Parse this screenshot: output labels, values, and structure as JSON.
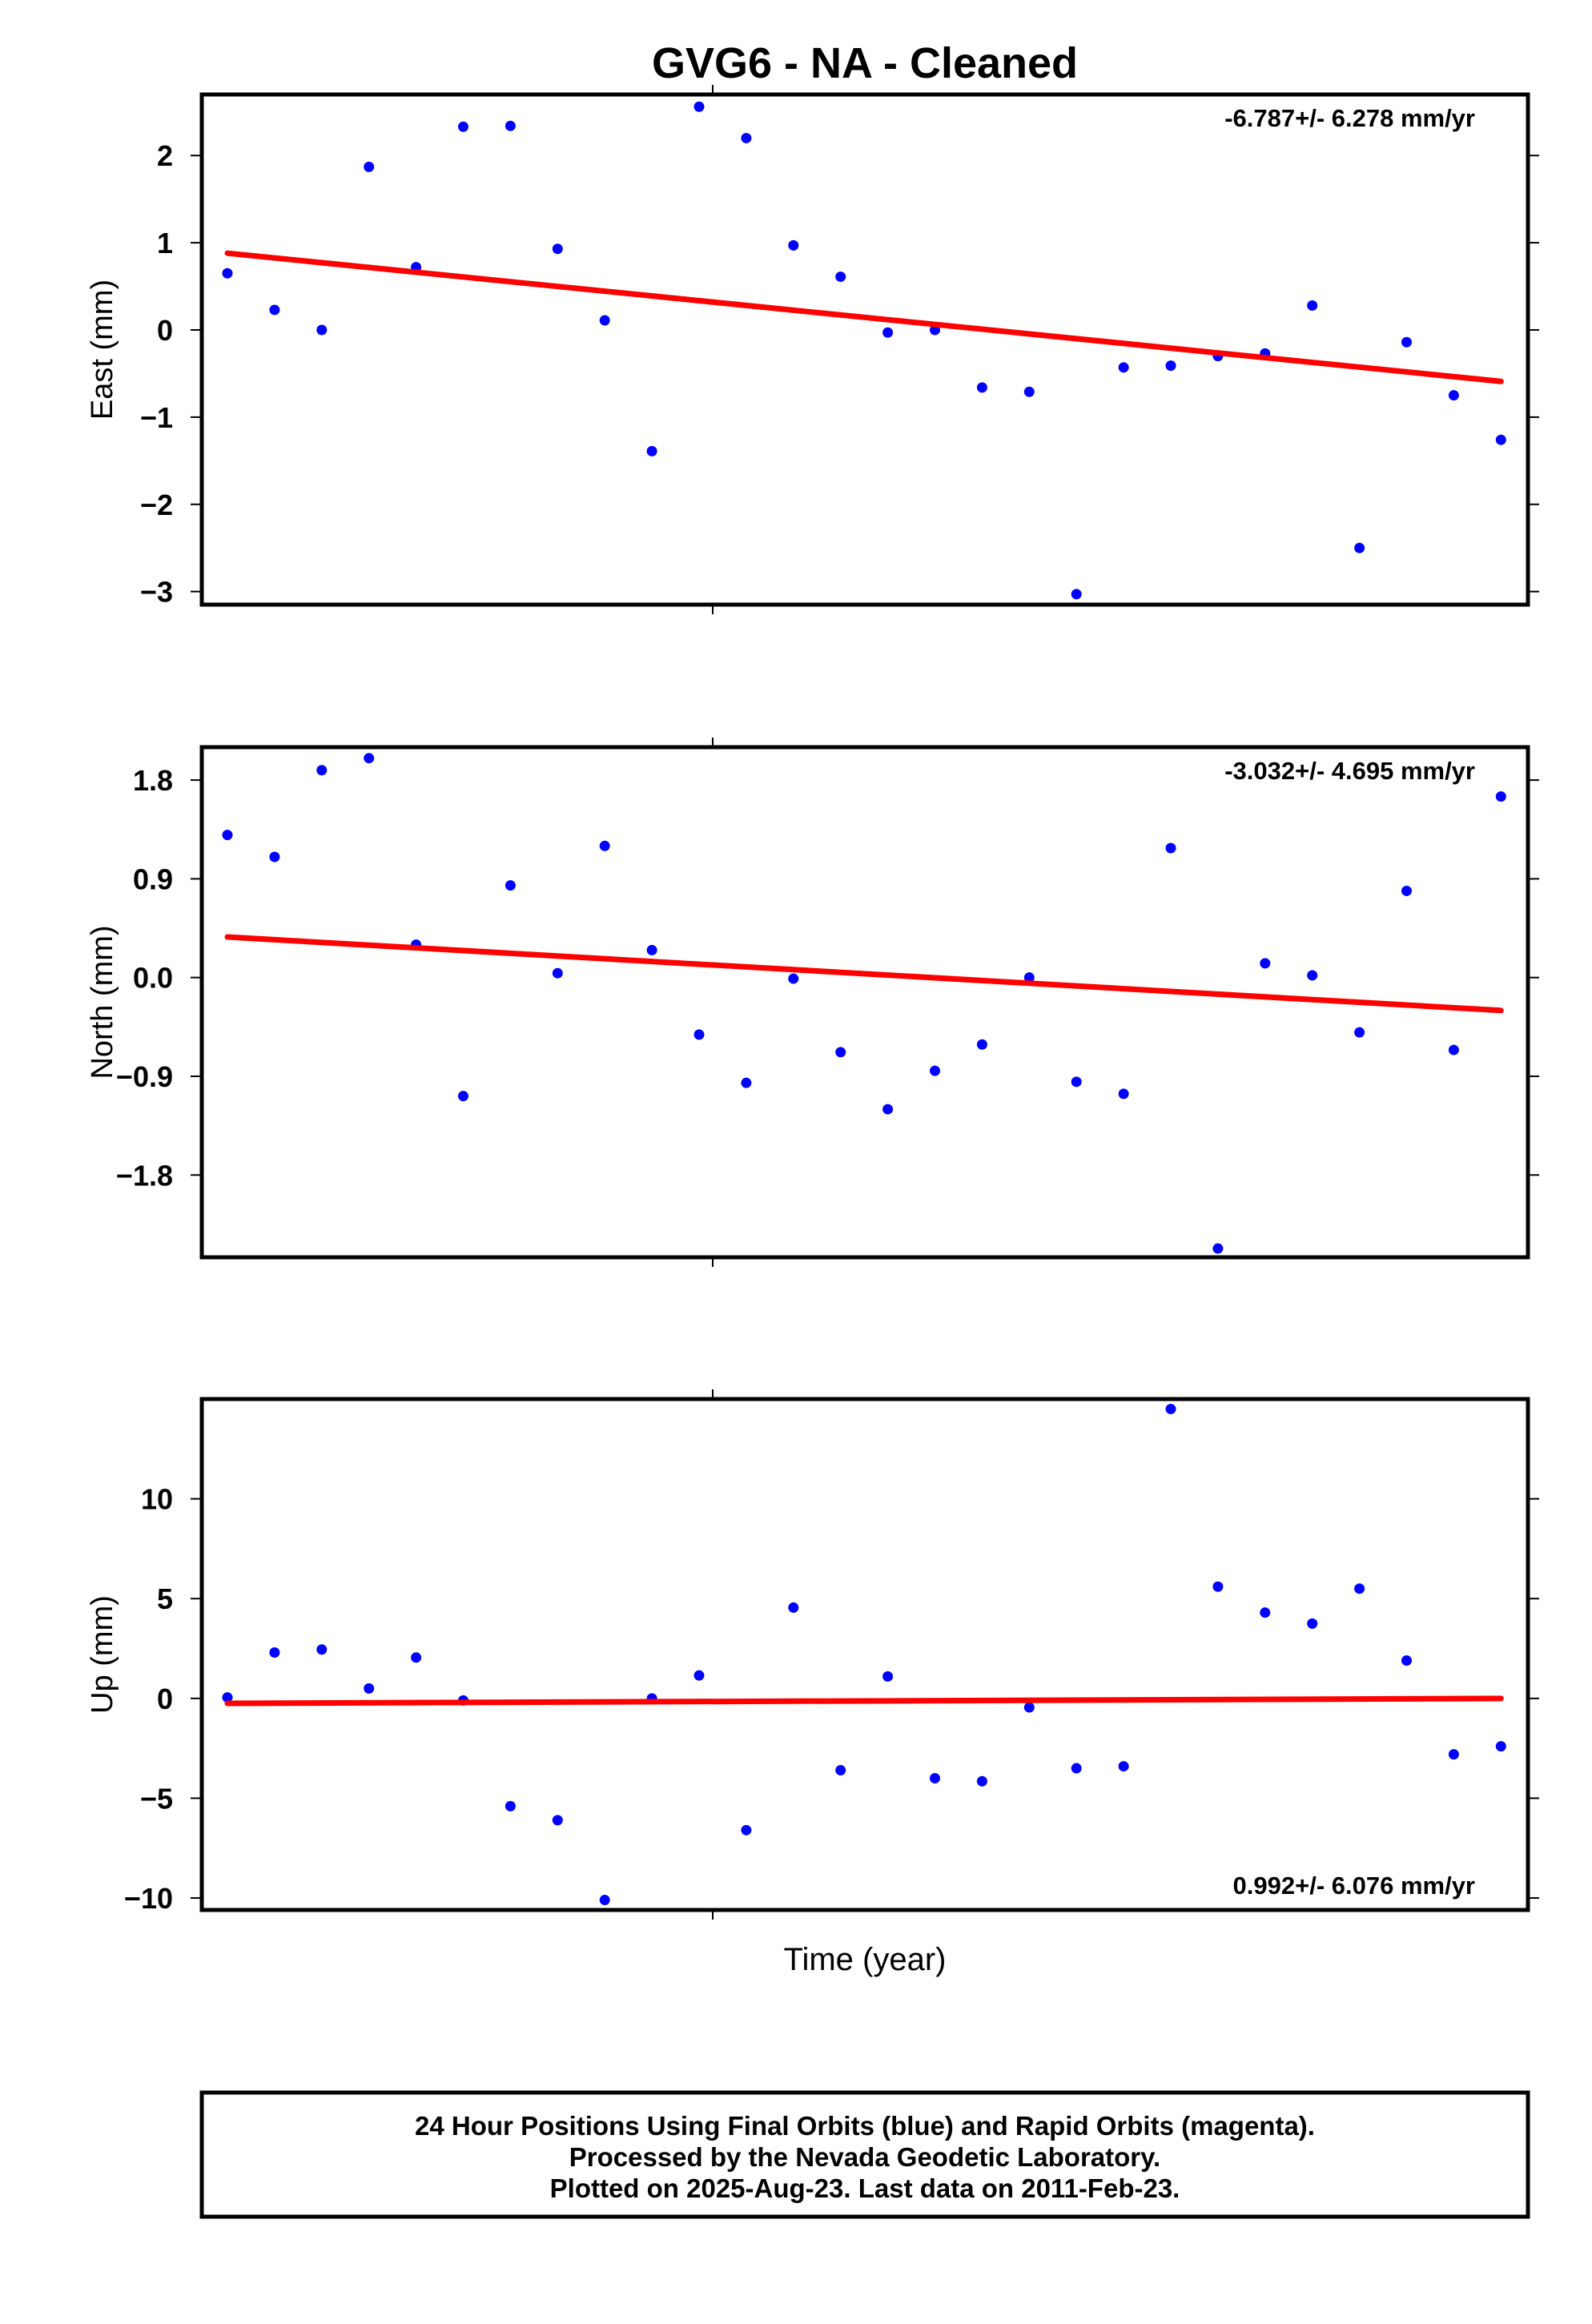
{
  "page": {
    "title": "GVG6  - NA - Cleaned",
    "xlabel": "Time (year)",
    "footer": [
      "24 Hour Positions Using Final Orbits (blue) and Rapid Orbits (magenta).",
      "Processed by the Nevada Geodetic Laboratory.",
      "Plotted on 2025-Aug-23. Last data on 2011-Feb-23."
    ]
  },
  "colors": {
    "points": "#0000ff",
    "trend": "#ff0000",
    "frame": "#000000"
  },
  "chart_data": [
    {
      "type": "scatter",
      "panel": "east",
      "ylabel": "East (mm)",
      "rate_label": "-6.787+/- 6.278 mm/yr",
      "rate_position": "top-right",
      "ylim": [
        -3.15,
        2.7
      ],
      "yticks": [
        2,
        1,
        0,
        -1,
        -2,
        -3
      ],
      "ytick_labels": [
        "2",
        "1",
        "0",
        "−1",
        "−2",
        "−3"
      ],
      "series": [
        {
          "name": "",
          "values": [
            0.65,
            0.23,
            0.0,
            1.87,
            0.72,
            2.33,
            2.34,
            0.93,
            0.11,
            -1.39,
            2.56,
            2.2,
            0.97,
            0.61,
            -0.03,
            0.0,
            -0.66,
            -0.71,
            -3.03,
            -0.43,
            -0.41,
            -0.3,
            -0.27,
            0.28,
            -2.5,
            -0.14,
            -0.75,
            -1.26
          ]
        }
      ],
      "trend": [
        0.88,
        -0.59
      ]
    },
    {
      "type": "scatter",
      "panel": "north",
      "ylabel": "North (mm)",
      "rate_label": "-3.032+/- 4.695 mm/yr",
      "rate_position": "top-right",
      "ylim": [
        -2.55,
        2.1
      ],
      "yticks": [
        1.8,
        0.9,
        0.0,
        -0.9,
        -1.8
      ],
      "ytick_labels": [
        "1.8",
        "0.9",
        "0.0",
        "−0.9",
        "−1.8"
      ],
      "series": [
        {
          "name": "",
          "values": [
            1.3,
            1.1,
            1.89,
            2.0,
            0.3,
            -1.08,
            0.84,
            0.04,
            1.2,
            0.25,
            -0.52,
            -0.96,
            -0.01,
            -0.68,
            -1.2,
            -0.85,
            -0.61,
            0.0,
            -0.95,
            -1.06,
            1.18,
            -2.47,
            0.13,
            0.02,
            -0.5,
            0.79,
            -0.66,
            1.65
          ]
        }
      ],
      "trend": [
        0.37,
        -0.3
      ]
    },
    {
      "type": "scatter",
      "panel": "up",
      "ylabel": "Up (mm)",
      "rate_label": "0.992+/- 6.076 mm/yr",
      "rate_position": "bottom-right",
      "ylim": [
        -10.6,
        15.0
      ],
      "yticks": [
        10,
        5,
        0,
        -5,
        -10
      ],
      "ytick_labels": [
        "10",
        "5",
        "0",
        "−5",
        "−10"
      ],
      "series": [
        {
          "name": "",
          "values": [
            0.05,
            2.3,
            2.45,
            0.5,
            2.05,
            -0.1,
            -5.4,
            -6.1,
            -10.1,
            0.0,
            1.15,
            -6.6,
            4.55,
            -3.6,
            1.1,
            -4.0,
            -4.15,
            -0.45,
            -3.5,
            -3.4,
            14.5,
            5.6,
            4.3,
            3.75,
            5.5,
            1.9,
            -2.8,
            -2.4
          ]
        }
      ],
      "trend": [
        -0.25,
        0.0
      ]
    }
  ]
}
